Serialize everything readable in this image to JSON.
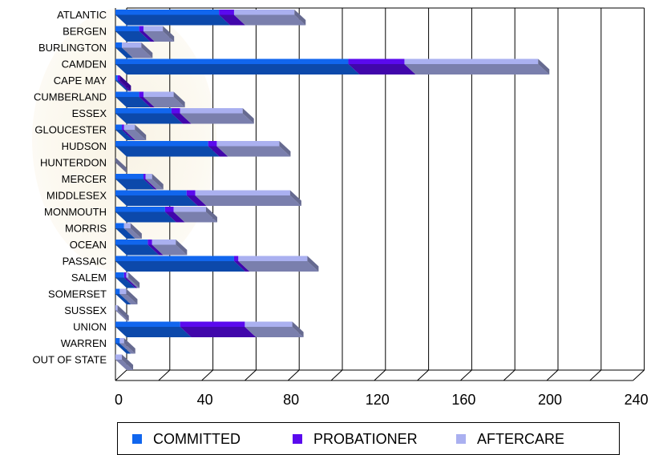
{
  "chart_data": {
    "type": "bar",
    "orientation": "horizontal",
    "stacked": true,
    "three_d": true,
    "categories": [
      "ATLANTIC",
      "BERGEN",
      "BURLINGTON",
      "CAMDEN",
      "CAPE MAY",
      "CUMBERLAND",
      "ESSEX",
      "GLOUCESTER",
      "HUDSON",
      "HUNTERDON",
      "MERCER",
      "MIDDLESEX",
      "MONMOUTH",
      "MORRIS",
      "OCEAN",
      "PASSAIC",
      "SALEM",
      "SOMERSET",
      "SUSSEX",
      "UNION",
      "WARREN",
      "OUT OF STATE"
    ],
    "series": [
      {
        "name": "COMMITTED",
        "color": "#1166ee",
        "values": [
          48,
          11,
          3,
          108,
          1,
          11,
          26,
          3,
          43,
          0,
          13,
          33,
          23,
          4,
          15,
          55,
          4,
          2,
          0,
          30,
          2,
          0
        ]
      },
      {
        "name": "PROBATIONER",
        "color": "#5a0aee",
        "values": [
          7,
          2,
          0,
          26,
          1,
          2,
          4,
          1,
          4,
          0,
          1,
          4,
          4,
          0,
          2,
          2,
          1,
          0,
          0,
          30,
          0,
          0
        ]
      },
      {
        "name": "AFTERCARE",
        "color": "#aab0f0",
        "values": [
          28,
          9,
          9,
          62,
          0,
          14,
          29,
          5,
          29,
          0,
          3,
          44,
          15,
          3,
          11,
          32,
          1,
          3,
          1,
          22,
          2,
          3
        ]
      }
    ],
    "xlim": [
      0,
      240
    ],
    "xticks": [
      "0",
      "40",
      "80",
      "120",
      "160",
      "200",
      "240"
    ],
    "grid": true,
    "legend_position": "bottom"
  }
}
